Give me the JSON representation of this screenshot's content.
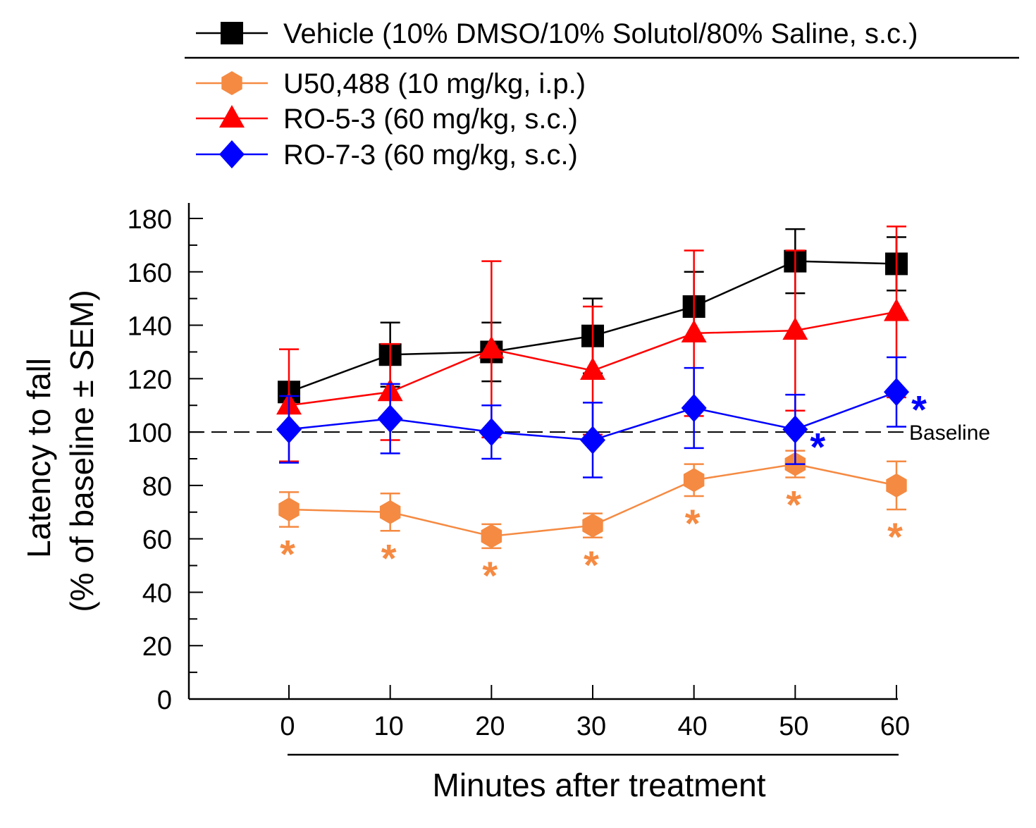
{
  "chart_data": {
    "type": "line",
    "xlabel": "Minutes after treatment",
    "ylabel_line1": "Latency to fall",
    "ylabel_line2": "(% of baseline ± SEM)",
    "x": [
      0,
      10,
      20,
      30,
      40,
      50,
      60
    ],
    "x_ticks": [
      "0",
      "10",
      "20",
      "30",
      "40",
      "50",
      "60"
    ],
    "ylim": [
      0,
      180
    ],
    "y_ticks": [
      "0",
      "20",
      "40",
      "60",
      "80",
      "100",
      "120",
      "140",
      "160",
      "180"
    ],
    "y_tick_values": [
      0,
      20,
      40,
      60,
      80,
      100,
      120,
      140,
      160,
      180
    ],
    "baseline": {
      "value": 100,
      "label": "Baseline",
      "style": "dashed"
    },
    "series": [
      {
        "name": "Vehicle (10% DMSO/10% Solutol/80% Saline, s.c.)",
        "color": "#000000",
        "marker": "square",
        "values": [
          115,
          129,
          130,
          136,
          147,
          164,
          163
        ],
        "sem": [
          3,
          12,
          11,
          14,
          13,
          12,
          10
        ]
      },
      {
        "name": "U50,488 (10 mg/kg, i.p.)",
        "color": "#F58A42",
        "marker": "hexagon",
        "values": [
          71,
          70,
          61,
          65,
          82,
          88,
          80
        ],
        "sem": [
          6.5,
          7,
          4.5,
          4.5,
          6,
          5,
          9
        ]
      },
      {
        "name": "RO-5-3 (60 mg/kg, s.c.)",
        "color": "#FF0000",
        "marker": "triangle",
        "values": [
          110,
          115,
          131,
          123,
          137,
          138,
          145
        ],
        "sem": [
          21,
          18,
          33,
          24,
          31,
          30,
          32
        ]
      },
      {
        "name": "RO-7-3 (60 mg/kg, s.c.)",
        "color": "#0000FF",
        "marker": "diamond",
        "values": [
          101,
          105,
          100,
          97,
          109,
          101,
          115
        ],
        "sem": [
          12.5,
          13,
          10,
          14,
          15,
          13,
          13
        ]
      }
    ],
    "significance": [
      {
        "series_index": 1,
        "x": 0,
        "symbol": "*"
      },
      {
        "series_index": 1,
        "x": 10,
        "symbol": "*"
      },
      {
        "series_index": 1,
        "x": 20,
        "symbol": "*"
      },
      {
        "series_index": 1,
        "x": 30,
        "symbol": "*"
      },
      {
        "series_index": 1,
        "x": 40,
        "symbol": "*"
      },
      {
        "series_index": 1,
        "x": 50,
        "symbol": "*"
      },
      {
        "series_index": 1,
        "x": 60,
        "symbol": "*"
      },
      {
        "series_index": 3,
        "x": 50,
        "symbol": "*"
      },
      {
        "series_index": 3,
        "x": 60,
        "symbol": "*"
      }
    ],
    "legend_position": "top"
  }
}
